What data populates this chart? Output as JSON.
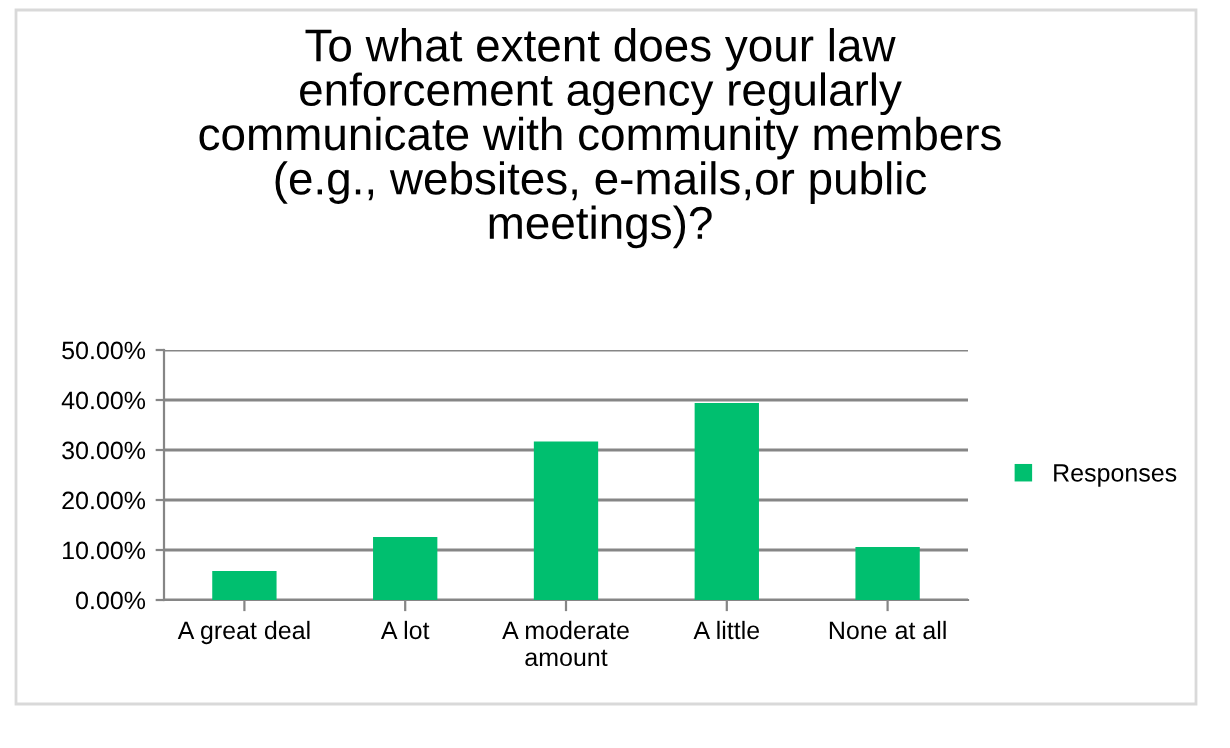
{
  "chart_data": {
    "type": "bar",
    "title": "To what extent does your law\nenforcement agency regularly\ncommunicate with community members\n(e.g., websites, e-mails,or public\nmeetings)?",
    "categories": [
      "A great deal",
      "A lot",
      "A moderate\namount",
      "A little",
      "None at all"
    ],
    "series": [
      {
        "name": "Responses",
        "color": "#00bf6f",
        "values": [
          5.8,
          12.6,
          31.7,
          39.4,
          10.6
        ]
      }
    ],
    "ylim": [
      0,
      50
    ],
    "yticks": [
      {
        "value": 0,
        "label": "0.00%"
      },
      {
        "value": 10,
        "label": "10.00%"
      },
      {
        "value": 20,
        "label": "20.00%"
      },
      {
        "value": 30,
        "label": "30.00%"
      },
      {
        "value": 40,
        "label": "40.00%"
      },
      {
        "value": 50,
        "label": "50.00%"
      }
    ],
    "grid": "y",
    "legend": "right"
  }
}
